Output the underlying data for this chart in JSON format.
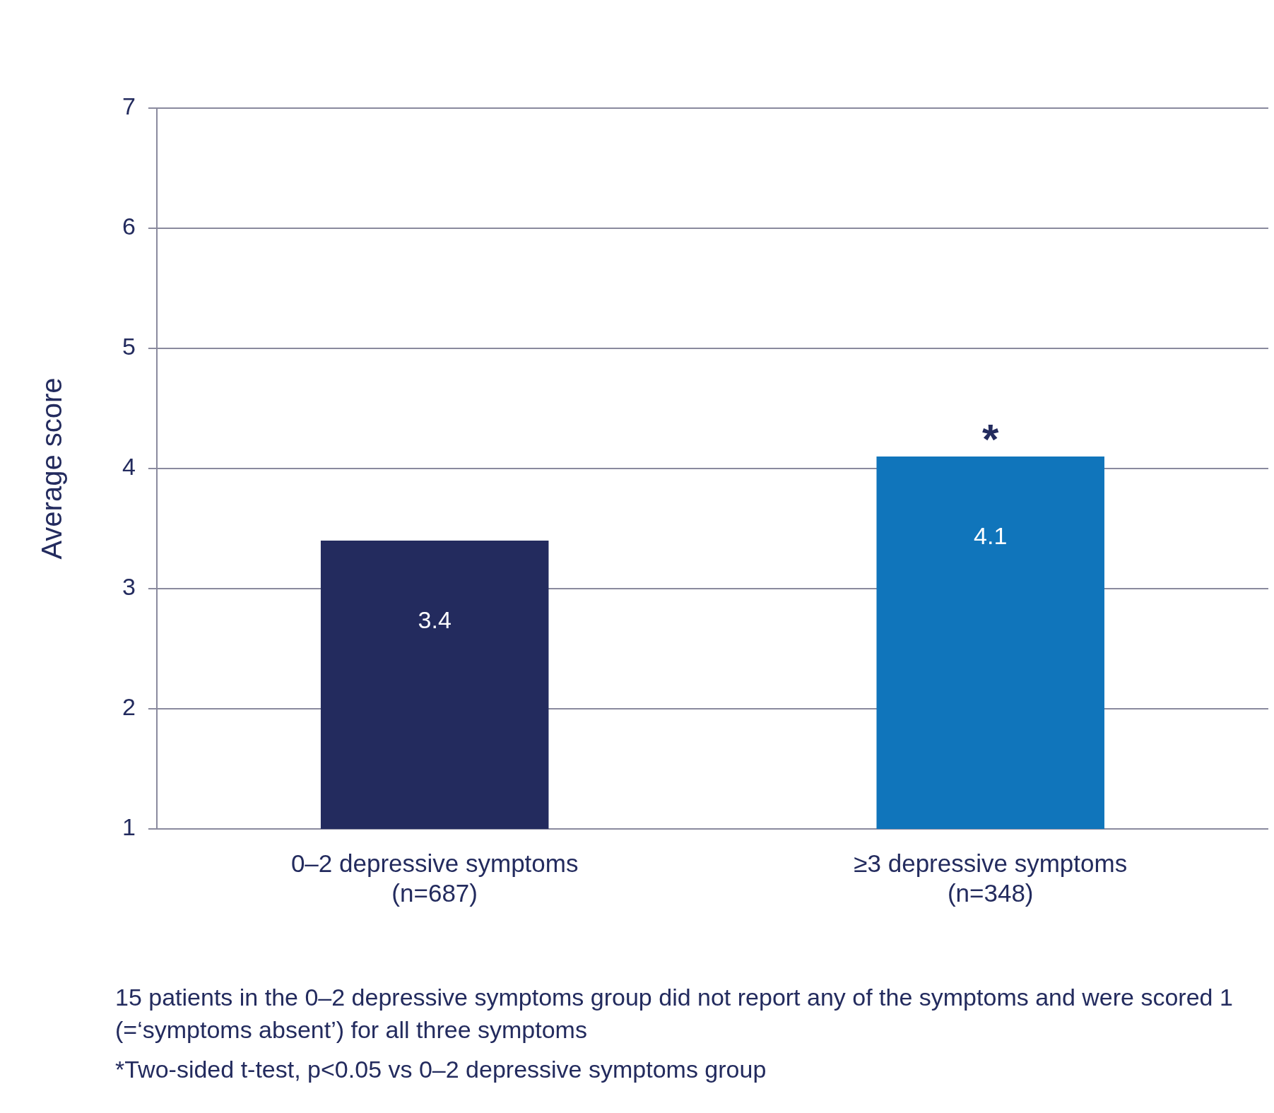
{
  "chart_data": {
    "type": "bar",
    "ylabel": "Average score",
    "categories": [
      "0–2 depressive symptoms\n(n=687)",
      "≥3 depressive symptoms\n(n=348)"
    ],
    "values": [
      3.4,
      4.1
    ],
    "colors": [
      "#232b5e",
      "#1075bb"
    ],
    "ylim": [
      1,
      7
    ],
    "yticks": [
      1,
      2,
      3,
      4,
      5,
      6,
      7
    ],
    "grid": "y",
    "data_labels": true,
    "annotations": [
      {
        "text": "*",
        "x": "≥3 depressive symptoms\n(n=348)",
        "y": 4.1
      },
      "15 patients in the 0–2 depressive symptoms group did not report any of the symptoms and were scored 1 (=‘symptoms absent’) for all three symptoms",
      "*Two-sided t-test, p<0.05 vs 0–2 depressive symptoms group"
    ]
  }
}
